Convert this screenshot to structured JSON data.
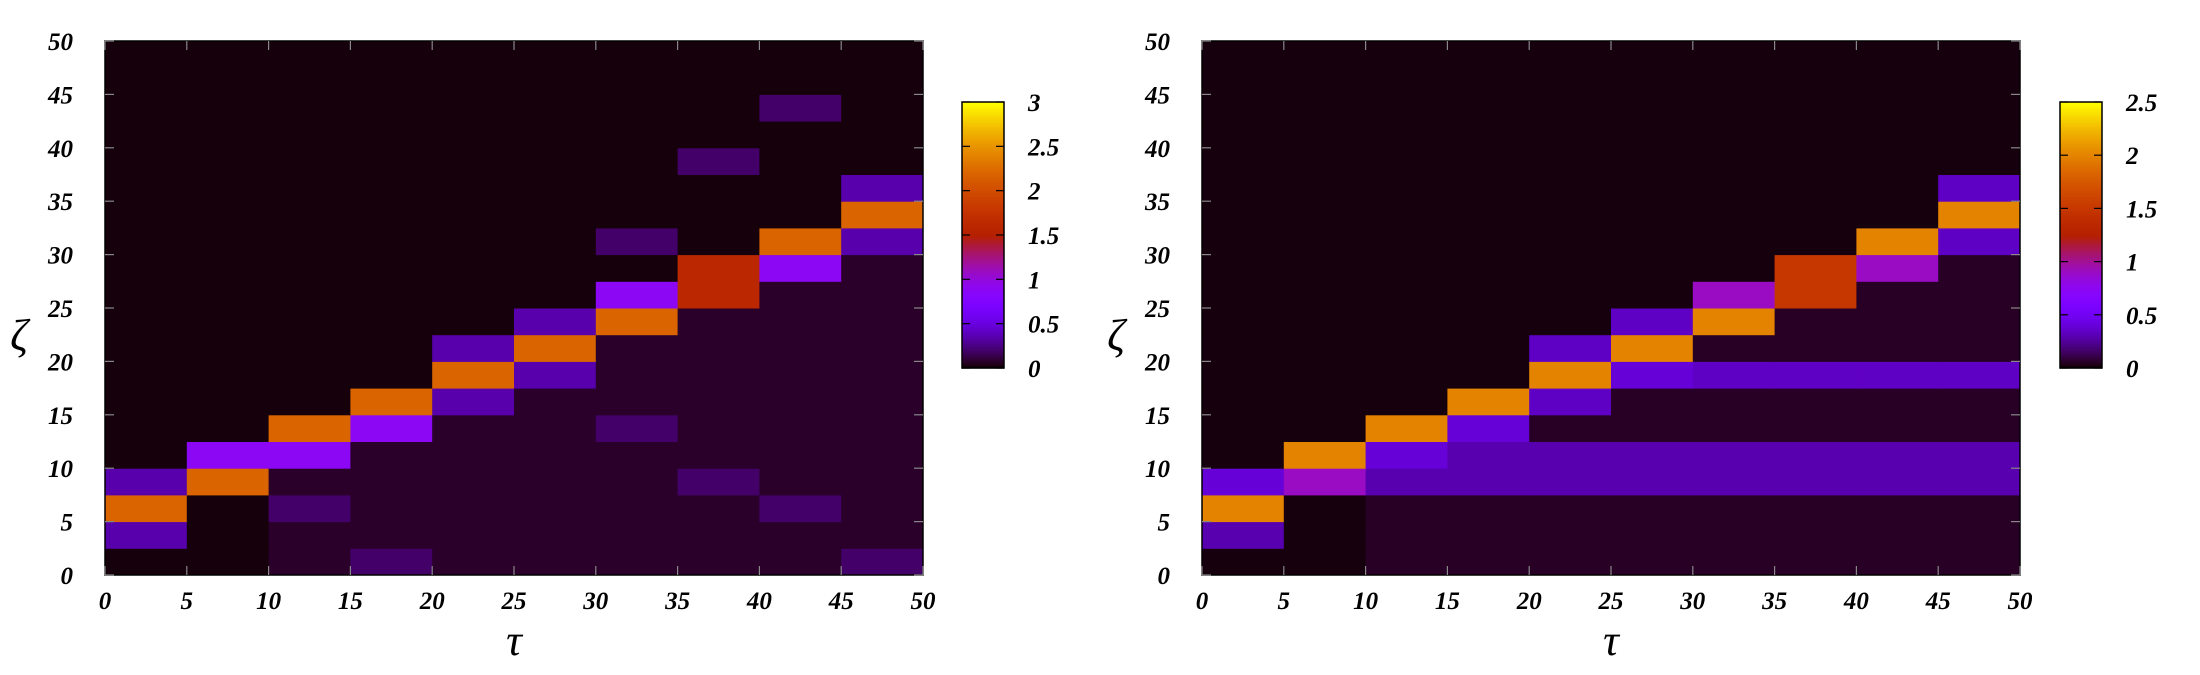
{
  "chart_data": [
    {
      "type": "heatmap",
      "xlabel": "τ",
      "ylabel": "ζ",
      "x": [
        2.5,
        7.5,
        12.5,
        17.5,
        22.5,
        27.5,
        32.5,
        37.5,
        42.5,
        47.5
      ],
      "y": [
        1.25,
        3.75,
        6.25,
        8.75,
        11.25,
        13.75,
        16.25,
        18.75,
        21.25,
        23.75,
        26.25,
        28.75,
        31.25,
        33.75,
        36.25,
        38.75,
        41.25,
        43.75,
        46.25,
        48.75
      ],
      "z": [
        [
          0.02,
          0.02,
          0.08,
          0.2,
          0.08,
          0.08,
          0.08,
          0.08,
          0.08,
          0.2
        ],
        [
          0.35,
          0.02,
          0.08,
          0.08,
          0.08,
          0.08,
          0.08,
          0.08,
          0.08,
          0.08
        ],
        [
          2.2,
          0.02,
          0.2,
          0.08,
          0.08,
          0.08,
          0.08,
          0.08,
          0.2,
          0.08
        ],
        [
          0.35,
          2.2,
          0.08,
          0.08,
          0.08,
          0.08,
          0.08,
          0.2,
          0.08,
          0.08
        ],
        [
          0.02,
          0.9,
          0.9,
          0.08,
          0.08,
          0.08,
          0.08,
          0.08,
          0.08,
          0.08
        ],
        [
          0.02,
          0.02,
          2.2,
          0.9,
          0.08,
          0.08,
          0.2,
          0.08,
          0.08,
          0.08
        ],
        [
          0.02,
          0.02,
          0.02,
          2.2,
          0.35,
          0.08,
          0.08,
          0.08,
          0.08,
          0.08
        ],
        [
          0.02,
          0.02,
          0.02,
          0.02,
          2.2,
          0.35,
          0.08,
          0.08,
          0.08,
          0.08
        ],
        [
          0.02,
          0.02,
          0.02,
          0.02,
          0.35,
          2.2,
          0.08,
          0.08,
          0.08,
          0.08
        ],
        [
          0.02,
          0.02,
          0.02,
          0.02,
          0.02,
          0.35,
          2.2,
          0.08,
          0.08,
          0.08
        ],
        [
          0.02,
          0.02,
          0.02,
          0.02,
          0.02,
          0.02,
          0.9,
          1.6,
          0.08,
          0.08
        ],
        [
          0.02,
          0.02,
          0.02,
          0.02,
          0.02,
          0.02,
          0.02,
          1.6,
          0.9,
          0.08
        ],
        [
          0.02,
          0.02,
          0.02,
          0.02,
          0.02,
          0.02,
          0.2,
          0.02,
          2.2,
          0.35
        ],
        [
          0.02,
          0.02,
          0.02,
          0.02,
          0.02,
          0.02,
          0.02,
          0.02,
          0.02,
          2.2
        ],
        [
          0.02,
          0.02,
          0.02,
          0.02,
          0.02,
          0.02,
          0.02,
          0.02,
          0.02,
          0.35
        ],
        [
          0.02,
          0.02,
          0.02,
          0.02,
          0.02,
          0.02,
          0.02,
          0.2,
          0.02,
          0.02
        ],
        [
          0.02,
          0.02,
          0.02,
          0.02,
          0.02,
          0.02,
          0.02,
          0.02,
          0.02,
          0.02
        ],
        [
          0.02,
          0.02,
          0.02,
          0.02,
          0.02,
          0.02,
          0.02,
          0.02,
          0.2,
          0.02
        ],
        [
          0.02,
          0.02,
          0.02,
          0.02,
          0.02,
          0.02,
          0.02,
          0.02,
          0.02,
          0.02
        ],
        [
          0.02,
          0.02,
          0.02,
          0.02,
          0.02,
          0.02,
          0.02,
          0.02,
          0.02,
          0.02
        ]
      ],
      "xlim": [
        0,
        50
      ],
      "xticks": [
        0,
        5,
        10,
        15,
        20,
        25,
        30,
        35,
        40,
        45,
        50
      ],
      "ylim": [
        0,
        50
      ],
      "yticks": [
        0,
        5,
        10,
        15,
        20,
        25,
        30,
        35,
        40,
        45,
        50
      ],
      "zlim": [
        0,
        3
      ],
      "zticks": [
        0,
        0.5,
        1,
        1.5,
        2,
        2.5,
        3
      ]
    },
    {
      "type": "heatmap",
      "xlabel": "τ",
      "ylabel": "ζ",
      "x": [
        2.5,
        7.5,
        12.5,
        17.5,
        22.5,
        27.5,
        32.5,
        37.5,
        42.5,
        47.5
      ],
      "y": [
        1.25,
        3.75,
        6.25,
        8.75,
        11.25,
        13.75,
        16.25,
        18.75,
        21.25,
        23.75,
        26.25,
        28.75,
        31.25,
        33.75,
        36.25,
        38.75,
        41.25,
        43.75,
        46.25,
        48.75
      ],
      "z": [
        [
          0.02,
          0.02,
          0.06,
          0.06,
          0.06,
          0.06,
          0.06,
          0.06,
          0.06,
          0.06
        ],
        [
          0.3,
          0.02,
          0.06,
          0.06,
          0.06,
          0.06,
          0.06,
          0.06,
          0.06,
          0.06
        ],
        [
          2.0,
          0.02,
          0.06,
          0.06,
          0.06,
          0.06,
          0.06,
          0.06,
          0.06,
          0.06
        ],
        [
          0.4,
          0.9,
          0.3,
          0.3,
          0.3,
          0.3,
          0.3,
          0.3,
          0.3,
          0.3
        ],
        [
          0.02,
          2.0,
          0.4,
          0.3,
          0.3,
          0.3,
          0.3,
          0.3,
          0.3,
          0.3
        ],
        [
          0.02,
          0.02,
          2.0,
          0.4,
          0.06,
          0.06,
          0.06,
          0.06,
          0.06,
          0.06
        ],
        [
          0.02,
          0.02,
          0.02,
          2.0,
          0.35,
          0.06,
          0.06,
          0.06,
          0.06,
          0.06
        ],
        [
          0.02,
          0.02,
          0.02,
          0.02,
          2.0,
          0.4,
          0.35,
          0.35,
          0.35,
          0.35
        ],
        [
          0.02,
          0.02,
          0.02,
          0.02,
          0.35,
          2.0,
          0.06,
          0.06,
          0.06,
          0.06
        ],
        [
          0.02,
          0.02,
          0.02,
          0.02,
          0.02,
          0.35,
          2.0,
          0.06,
          0.06,
          0.06
        ],
        [
          0.02,
          0.02,
          0.02,
          0.02,
          0.02,
          0.02,
          0.9,
          1.5,
          0.06,
          0.06
        ],
        [
          0.02,
          0.02,
          0.02,
          0.02,
          0.02,
          0.02,
          0.02,
          1.5,
          0.9,
          0.06
        ],
        [
          0.02,
          0.02,
          0.02,
          0.02,
          0.02,
          0.02,
          0.02,
          0.02,
          2.0,
          0.35
        ],
        [
          0.02,
          0.02,
          0.02,
          0.02,
          0.02,
          0.02,
          0.02,
          0.02,
          0.02,
          2.0
        ],
        [
          0.02,
          0.02,
          0.02,
          0.02,
          0.02,
          0.02,
          0.02,
          0.02,
          0.02,
          0.35
        ],
        [
          0.02,
          0.02,
          0.02,
          0.02,
          0.02,
          0.02,
          0.02,
          0.02,
          0.02,
          0.02
        ],
        [
          0.02,
          0.02,
          0.02,
          0.02,
          0.02,
          0.02,
          0.02,
          0.02,
          0.02,
          0.02
        ],
        [
          0.02,
          0.02,
          0.02,
          0.02,
          0.02,
          0.02,
          0.02,
          0.02,
          0.02,
          0.02
        ],
        [
          0.02,
          0.02,
          0.02,
          0.02,
          0.02,
          0.02,
          0.02,
          0.02,
          0.02,
          0.02
        ],
        [
          0.02,
          0.02,
          0.02,
          0.02,
          0.02,
          0.02,
          0.02,
          0.02,
          0.02,
          0.02
        ]
      ],
      "xlim": [
        0,
        50
      ],
      "xticks": [
        0,
        5,
        10,
        15,
        20,
        25,
        30,
        35,
        40,
        45,
        50
      ],
      "ylim": [
        0,
        50
      ],
      "yticks": [
        0,
        5,
        10,
        15,
        20,
        25,
        30,
        35,
        40,
        45,
        50
      ],
      "zlim": [
        0,
        2.5
      ],
      "zticks": [
        0,
        0.5,
        1,
        1.5,
        2,
        2.5
      ]
    }
  ]
}
